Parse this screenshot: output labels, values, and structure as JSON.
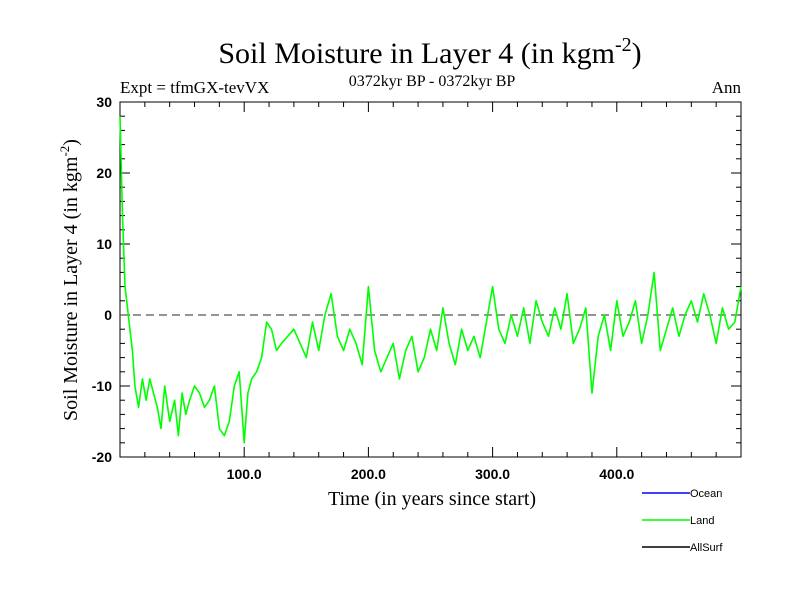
{
  "chart_data": {
    "type": "line",
    "title_main": "Soil Moisture in Layer 4 (in kgm",
    "title_sup": "-2",
    "title_close": ")",
    "subtitle": "0372kyr BP - 0372kyr BP",
    "expt_label": "Expt = tfmGX-tevVX",
    "period_label": "Ann",
    "xlabel": "Time (in years since start)",
    "ylabel_main": "Soil Moisture in Layer 4 (in kgm",
    "ylabel_sup": "-2",
    "ylabel_close": ")",
    "xlim": [
      0,
      500
    ],
    "ylim": [
      -20,
      30
    ],
    "x_ticks": [
      100,
      200,
      300,
      400
    ],
    "x_tick_labels": [
      "100.0",
      "200.0",
      "300.0",
      "400.0"
    ],
    "y_ticks": [
      -20,
      -10,
      0,
      10,
      20,
      30
    ],
    "y_tick_labels": [
      "-20",
      "-10",
      "0",
      "10",
      "20",
      "30"
    ],
    "reference_line": 0,
    "legend": [
      {
        "name": "Ocean",
        "color": "#0000ff"
      },
      {
        "name": "Land",
        "color": "#00ff00"
      },
      {
        "name": "AllSurf",
        "color": "#000000"
      }
    ],
    "series": [
      {
        "name": "Land",
        "color": "#00ff00",
        "x": [
          0,
          2,
          4,
          6,
          8,
          10,
          12,
          15,
          18,
          21,
          24,
          27,
          30,
          33,
          36,
          40,
          44,
          47,
          50,
          53,
          56,
          60,
          64,
          68,
          72,
          76,
          80,
          84,
          88,
          92,
          96,
          100,
          103,
          106,
          110,
          114,
          118,
          122,
          126,
          130,
          135,
          140,
          145,
          150,
          155,
          160,
          165,
          170,
          175,
          180,
          185,
          190,
          195,
          200,
          205,
          210,
          215,
          220,
          225,
          230,
          235,
          240,
          245,
          250,
          255,
          260,
          265,
          270,
          275,
          280,
          285,
          290,
          295,
          300,
          305,
          310,
          315,
          320,
          325,
          330,
          335,
          340,
          345,
          350,
          355,
          360,
          365,
          370,
          375,
          380,
          385,
          390,
          395,
          400,
          405,
          410,
          415,
          420,
          425,
          430,
          435,
          440,
          445,
          450,
          455,
          460,
          465,
          470,
          475,
          480,
          485,
          490,
          495,
          500
        ],
        "values": [
          28,
          14,
          4,
          1,
          -2,
          -5,
          -10,
          -13,
          -9,
          -12,
          -9,
          -11,
          -13,
          -16,
          -10,
          -15,
          -12,
          -17,
          -11,
          -14,
          -12,
          -10,
          -11,
          -13,
          -12,
          -10,
          -16,
          -17,
          -15,
          -10,
          -8,
          -18,
          -11,
          -9,
          -8,
          -6,
          -1,
          -2,
          -5,
          -4,
          -3,
          -2,
          -4,
          -6,
          -1,
          -5,
          0,
          3,
          -3,
          -5,
          -2,
          -4,
          -7,
          4,
          -5,
          -8,
          -6,
          -4,
          -9,
          -5,
          -3,
          -8,
          -6,
          -2,
          -5,
          1,
          -4,
          -7,
          -2,
          -5,
          -3,
          -6,
          -1,
          4,
          -2,
          -4,
          0,
          -3,
          1,
          -4,
          2,
          -1,
          -3,
          1,
          -2,
          3,
          -4,
          -2,
          1,
          -11,
          -3,
          0,
          -5,
          2,
          -3,
          -1,
          2,
          -4,
          0,
          6,
          -5,
          -2,
          1,
          -3,
          0,
          2,
          -1,
          3,
          0,
          -4,
          1,
          -2,
          -1,
          4
        ]
      }
    ]
  }
}
